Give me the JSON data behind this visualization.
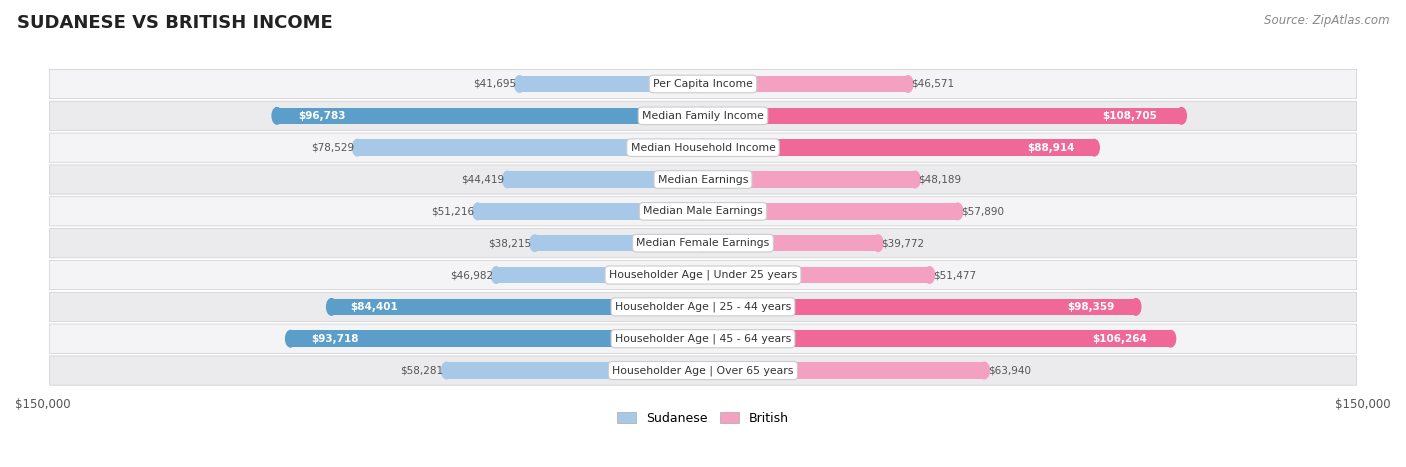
{
  "title": "SUDANESE VS BRITISH INCOME",
  "source": "Source: ZipAtlas.com",
  "categories": [
    "Per Capita Income",
    "Median Family Income",
    "Median Household Income",
    "Median Earnings",
    "Median Male Earnings",
    "Median Female Earnings",
    "Householder Age | Under 25 years",
    "Householder Age | 25 - 44 years",
    "Householder Age | 45 - 64 years",
    "Householder Age | Over 65 years"
  ],
  "sudanese_values": [
    41695,
    96783,
    78529,
    44419,
    51216,
    38215,
    46982,
    84401,
    93718,
    58281
  ],
  "british_values": [
    46571,
    108705,
    88914,
    48189,
    57890,
    39772,
    51477,
    98359,
    106264,
    63940
  ],
  "sudanese_labels": [
    "$41,695",
    "$96,783",
    "$78,529",
    "$44,419",
    "$51,216",
    "$38,215",
    "$46,982",
    "$84,401",
    "$93,718",
    "$58,281"
  ],
  "british_labels": [
    "$46,571",
    "$108,705",
    "$88,914",
    "$48,189",
    "$57,890",
    "$39,772",
    "$51,477",
    "$98,359",
    "$106,264",
    "$63,940"
  ],
  "sudanese_inside": [
    false,
    true,
    false,
    false,
    false,
    false,
    false,
    true,
    true,
    false
  ],
  "british_inside": [
    false,
    true,
    true,
    false,
    false,
    false,
    false,
    true,
    true,
    false
  ],
  "max_value": 150000,
  "sudanese_color_light": "#a8c8e8",
  "sudanese_color_dark": "#5b9ec9",
  "british_color_light": "#f4a0c0",
  "british_color_dark": "#f06898",
  "row_bg_even": "#f4f4f6",
  "row_bg_odd": "#ebebee",
  "label_outside_color": "#555555",
  "label_inside_color": "#ffffff",
  "bar_height": 0.52,
  "legend_sudanese": "Sudanese",
  "legend_british": "British"
}
